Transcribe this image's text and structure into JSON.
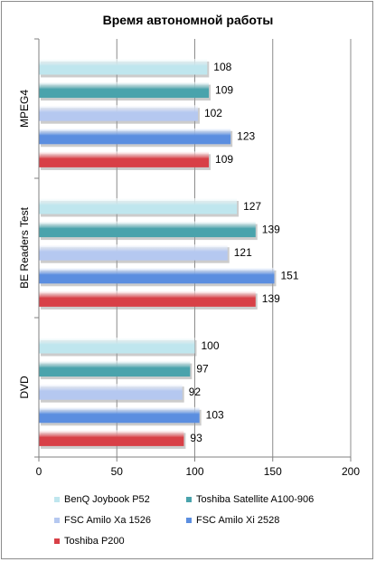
{
  "chart_data": {
    "type": "bar",
    "orientation": "horizontal",
    "title": "Время автономной работы",
    "categories": [
      "MPEG4",
      "BE Readers Test",
      "DVD"
    ],
    "series": [
      {
        "name": "BenQ Joybook P52",
        "color": "#bfe6ee",
        "values": [
          108,
          127,
          100
        ]
      },
      {
        "name": "Toshiba Satellite A100-906",
        "color": "#4aa3ac",
        "values": [
          109,
          139,
          97
        ]
      },
      {
        "name": "FSC Amilo Xa 1526",
        "color": "#b5c8f0",
        "values": [
          102,
          121,
          92
        ]
      },
      {
        "name": "FSC Amilo Xi 2528",
        "color": "#5b8ee0",
        "values": [
          123,
          151,
          103
        ]
      },
      {
        "name": "Toshiba P200",
        "color": "#d84047",
        "values": [
          109,
          139,
          93
        ]
      }
    ],
    "xlim": [
      0,
      200
    ],
    "xticks": [
      0,
      50,
      100,
      150,
      200
    ],
    "xlabel": "",
    "ylabel": "",
    "grid": true,
    "legend_position": "bottom"
  }
}
